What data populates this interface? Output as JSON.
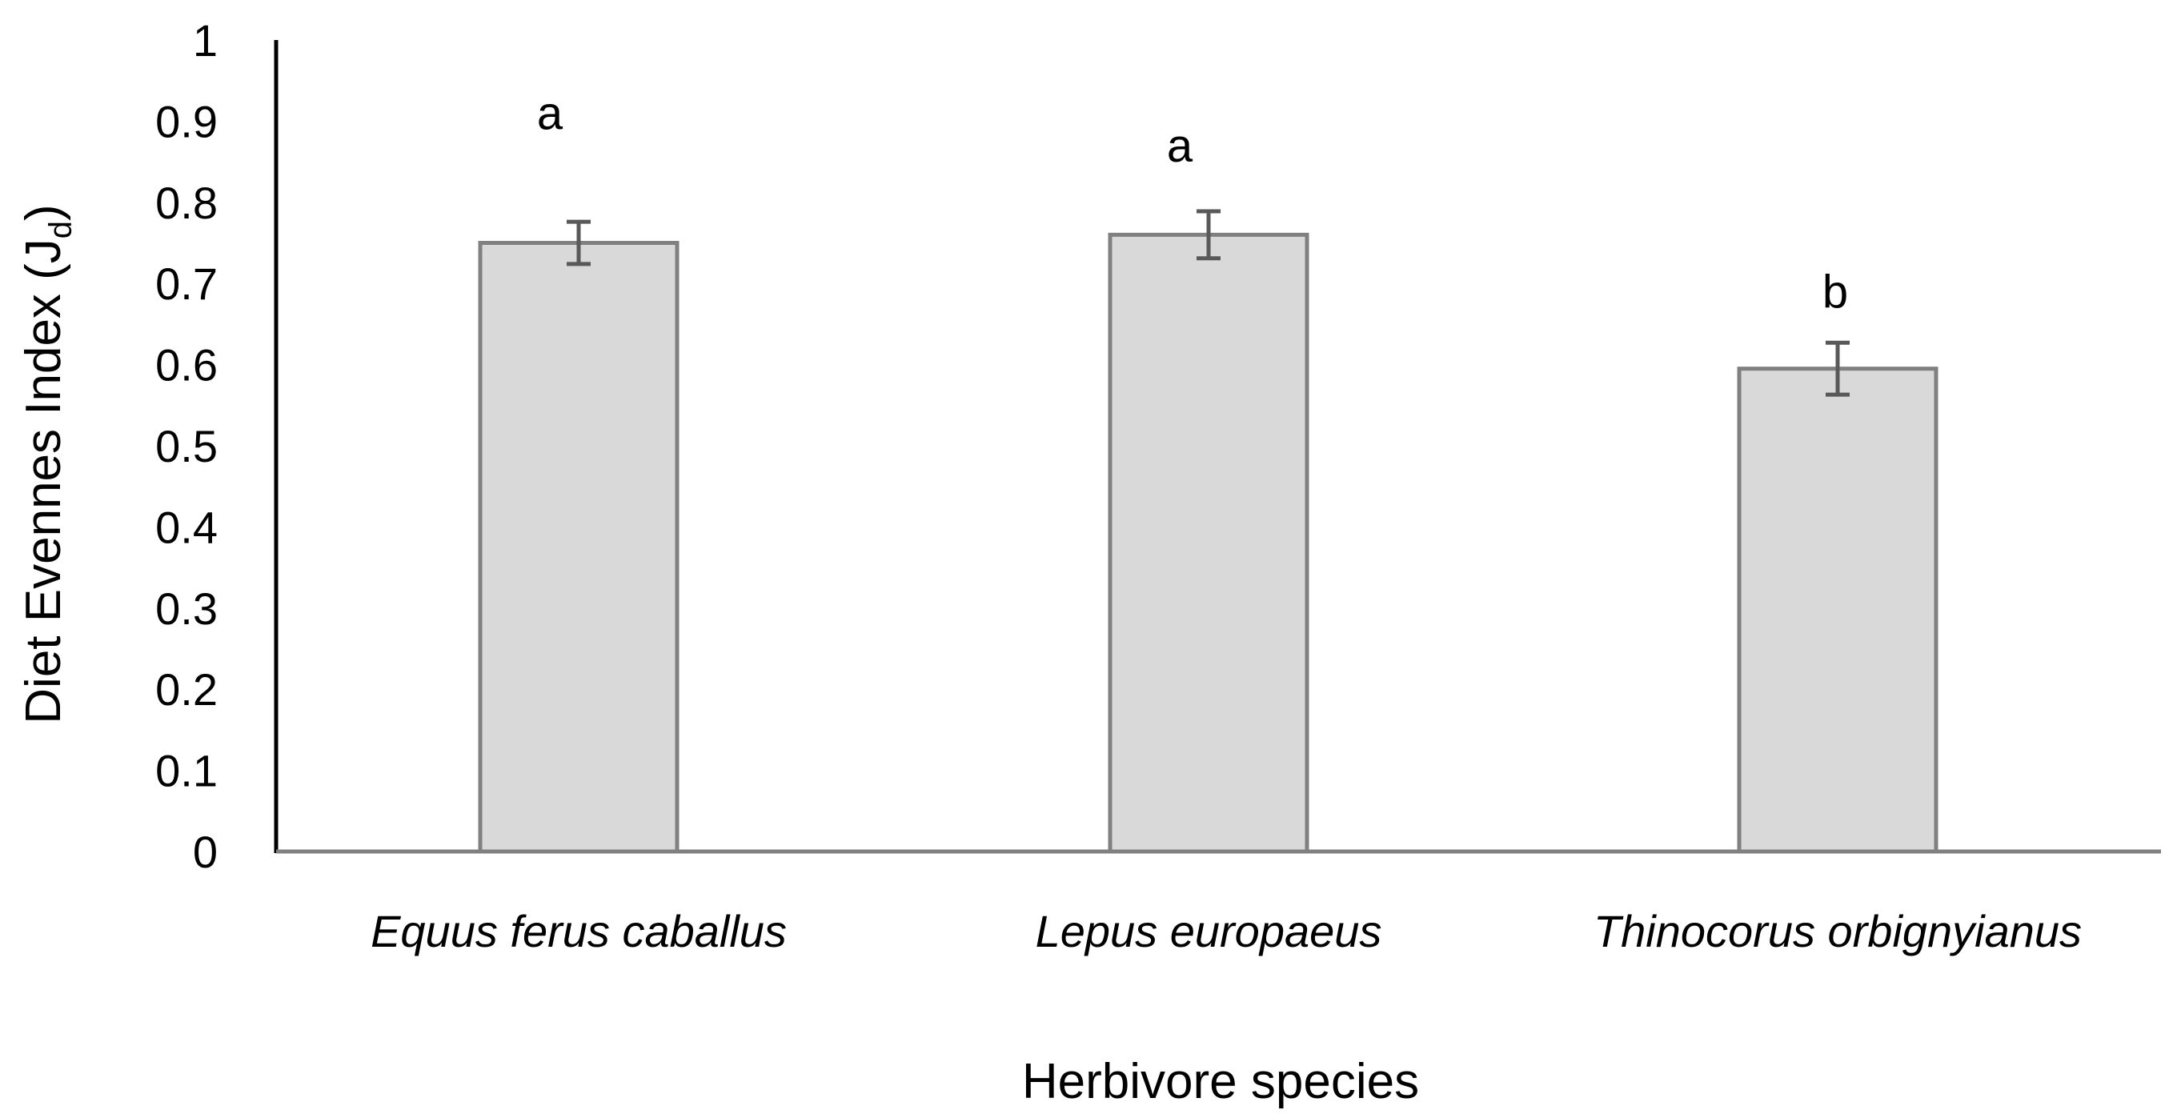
{
  "chart_data": {
    "type": "bar",
    "title": "",
    "xlabel": "Herbivore species",
    "ylabel_main": "Diet Evennes Index (J",
    "ylabel_sub": "d",
    "ylabel_close": ")",
    "categories": [
      "Equus ferus caballus",
      "Lepus europaeus",
      "Thinocorus orbignyianus"
    ],
    "values": [
      0.75,
      0.76,
      0.595
    ],
    "error": [
      0.026,
      0.029,
      0.032
    ],
    "significance_letters": [
      "a",
      "a",
      "b"
    ],
    "ylim": [
      0,
      1
    ],
    "yticks": [
      "0",
      "0.1",
      "0.2",
      "0.3",
      "0.4",
      "0.5",
      "0.6",
      "0.7",
      "0.8",
      "0.9",
      "1"
    ],
    "letter_positions": [
      0.91,
      0.87,
      0.69
    ],
    "grid": false,
    "legend": "none",
    "colors": {
      "bar_fill": "#d9d9d9",
      "bar_stroke": "#808080",
      "error_bar": "#595959",
      "axis": "#000000",
      "baseline": "#808080"
    }
  }
}
